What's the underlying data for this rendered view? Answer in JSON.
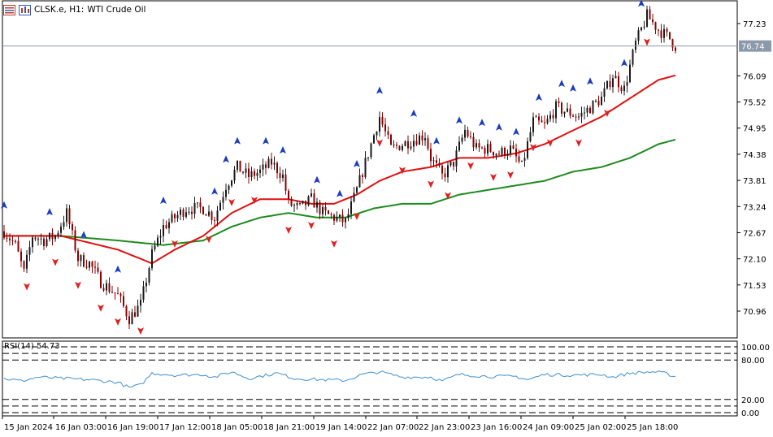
{
  "header": {
    "symbol_label": "CLSK.e, H1:",
    "instrument_name": "WTI Crude Oil"
  },
  "price_axis": {
    "ticks": [
      "77.23",
      "76.09",
      "75.52",
      "74.95",
      "74.38",
      "73.81",
      "73.24",
      "72.67",
      "72.10",
      "71.53",
      "70.96"
    ],
    "current_price": "76.74",
    "current_price_value": 76.74
  },
  "rsi": {
    "label": "RSI(14) 54.73",
    "ticks": [
      "100.00",
      "80.00",
      "20.00",
      "0.00"
    ],
    "levels": [
      100,
      90,
      80,
      20,
      10,
      0
    ]
  },
  "time_axis": {
    "labels": [
      "15 Jan 2024",
      "16 Jan 03:00",
      "16 Jan 19:00",
      "17 Jan 12:00",
      "18 Jan 05:00",
      "18 Jan 21:00",
      "19 Jan 14:00",
      "22 Jan 07:00",
      "22 Jan 23:00",
      "23 Jan 16:00",
      "24 Jan 09:00",
      "25 Jan 02:00",
      "25 Jan 18:00"
    ]
  },
  "colors": {
    "bull_candle": "#1a1a1a",
    "bear_candle": "#8b0000",
    "ma_fast": "#e01010",
    "ma_slow": "#1e8a1e",
    "rsi_line": "#3d8fd1",
    "up_arrow": "#1a3cc0",
    "down_arrow": "#e02020",
    "grid_line": "#000000",
    "price_line": "#8899aa"
  },
  "chart_data": {
    "type": "candlestick",
    "timeframe": "H1",
    "y_range": [
      70.5,
      77.6
    ],
    "close_anchors": [
      [
        0,
        72.7
      ],
      [
        4,
        72.4
      ],
      [
        7,
        71.8
      ],
      [
        10,
        72.6
      ],
      [
        14,
        72.5
      ],
      [
        18,
        72.6
      ],
      [
        22,
        73.1
      ],
      [
        26,
        72.1
      ],
      [
        30,
        72.0
      ],
      [
        34,
        71.6
      ],
      [
        40,
        71.3
      ],
      [
        44,
        70.8
      ],
      [
        48,
        71.1
      ],
      [
        52,
        72.2
      ],
      [
        56,
        72.8
      ],
      [
        60,
        73.0
      ],
      [
        64,
        73.2
      ],
      [
        70,
        73.2
      ],
      [
        74,
        73.0
      ],
      [
        78,
        73.7
      ],
      [
        82,
        74.1
      ],
      [
        86,
        73.9
      ],
      [
        90,
        74.0
      ],
      [
        94,
        74.2
      ],
      [
        98,
        73.9
      ],
      [
        100,
        73.3
      ],
      [
        104,
        73.2
      ],
      [
        108,
        73.4
      ],
      [
        112,
        73.1
      ],
      [
        116,
        73.0
      ],
      [
        120,
        72.9
      ],
      [
        124,
        73.6
      ],
      [
        128,
        74.4
      ],
      [
        132,
        75.2
      ],
      [
        136,
        74.5
      ],
      [
        140,
        74.6
      ],
      [
        144,
        74.7
      ],
      [
        148,
        74.8
      ],
      [
        150,
        74.3
      ],
      [
        154,
        73.9
      ],
      [
        158,
        74.2
      ],
      [
        162,
        74.9
      ],
      [
        166,
        74.5
      ],
      [
        170,
        74.5
      ],
      [
        174,
        74.4
      ],
      [
        178,
        74.5
      ],
      [
        182,
        74.1
      ],
      [
        186,
        75.1
      ],
      [
        190,
        75.0
      ],
      [
        194,
        75.4
      ],
      [
        198,
        75.3
      ],
      [
        202,
        75.2
      ],
      [
        206,
        75.4
      ],
      [
        210,
        75.6
      ],
      [
        214,
        76.1
      ],
      [
        218,
        75.8
      ],
      [
        222,
        76.8
      ],
      [
        226,
        77.4
      ],
      [
        230,
        77.1
      ],
      [
        234,
        76.9
      ],
      [
        236,
        76.74
      ]
    ],
    "ma_fast_anchors": [
      [
        0,
        72.6
      ],
      [
        20,
        72.6
      ],
      [
        40,
        72.3
      ],
      [
        52,
        72.0
      ],
      [
        60,
        72.3
      ],
      [
        70,
        72.6
      ],
      [
        80,
        73.1
      ],
      [
        90,
        73.4
      ],
      [
        100,
        73.4
      ],
      [
        108,
        73.3
      ],
      [
        116,
        73.3
      ],
      [
        124,
        73.5
      ],
      [
        132,
        73.8
      ],
      [
        140,
        74.0
      ],
      [
        150,
        74.1
      ],
      [
        160,
        74.3
      ],
      [
        170,
        74.3
      ],
      [
        180,
        74.4
      ],
      [
        190,
        74.6
      ],
      [
        200,
        74.9
      ],
      [
        210,
        75.2
      ],
      [
        220,
        75.6
      ],
      [
        230,
        76.0
      ],
      [
        236,
        76.1
      ]
    ],
    "ma_slow_anchors": [
      [
        0,
        72.6
      ],
      [
        20,
        72.6
      ],
      [
        40,
        72.5
      ],
      [
        56,
        72.4
      ],
      [
        70,
        72.5
      ],
      [
        80,
        72.8
      ],
      [
        90,
        73.0
      ],
      [
        100,
        73.1
      ],
      [
        110,
        73.0
      ],
      [
        120,
        73.0
      ],
      [
        130,
        73.2
      ],
      [
        140,
        73.3
      ],
      [
        150,
        73.3
      ],
      [
        160,
        73.5
      ],
      [
        170,
        73.6
      ],
      [
        180,
        73.7
      ],
      [
        190,
        73.8
      ],
      [
        200,
        74.0
      ],
      [
        210,
        74.1
      ],
      [
        220,
        74.3
      ],
      [
        230,
        74.6
      ],
      [
        236,
        74.7
      ]
    ],
    "rsi_anchors": [
      [
        0,
        52
      ],
      [
        6,
        48
      ],
      [
        12,
        54
      ],
      [
        20,
        52
      ],
      [
        30,
        50
      ],
      [
        40,
        46
      ],
      [
        44,
        38
      ],
      [
        48,
        42
      ],
      [
        52,
        60
      ],
      [
        60,
        57
      ],
      [
        70,
        58
      ],
      [
        74,
        54
      ],
      [
        80,
        62
      ],
      [
        86,
        52
      ],
      [
        96,
        60
      ],
      [
        102,
        52
      ],
      [
        112,
        50
      ],
      [
        120,
        49
      ],
      [
        126,
        58
      ],
      [
        132,
        62
      ],
      [
        140,
        54
      ],
      [
        150,
        54
      ],
      [
        154,
        48
      ],
      [
        160,
        58
      ],
      [
        170,
        55
      ],
      [
        180,
        55
      ],
      [
        184,
        50
      ],
      [
        190,
        58
      ],
      [
        200,
        57
      ],
      [
        210,
        58
      ],
      [
        214,
        54
      ],
      [
        220,
        60
      ],
      [
        228,
        62
      ],
      [
        232,
        60
      ],
      [
        236,
        55
      ]
    ],
    "up_arrows_at": [
      0,
      16,
      28,
      40,
      56,
      74,
      78,
      82,
      92,
      98,
      110,
      118,
      124,
      132,
      144,
      152,
      160,
      168,
      174,
      180,
      188,
      196,
      200,
      206,
      218,
      224,
      228
    ],
    "down_arrows_at": [
      8,
      18,
      26,
      34,
      40,
      48,
      60,
      72,
      80,
      88,
      100,
      108,
      116,
      124,
      132,
      140,
      150,
      156,
      164,
      172,
      178,
      186,
      192,
      202,
      212,
      226
    ]
  }
}
